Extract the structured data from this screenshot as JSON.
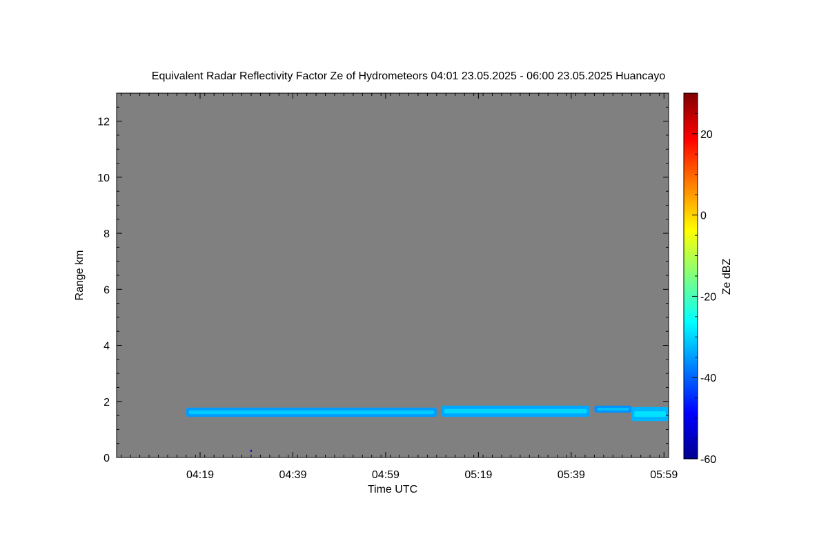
{
  "chart_data": {
    "type": "heatmap",
    "title": "Equivalent Radar Reflectivity Factor Ze of Hydrometeors   04:01 23.05.2025 - 06:00 23.05.2025 Huancayo",
    "xlabel": "Time UTC",
    "ylabel": "Range km",
    "x_range_min": [
      241,
      360
    ],
    "ylim": [
      0,
      13
    ],
    "x_ticks": [
      {
        "label": "04:19",
        "minute": 259
      },
      {
        "label": "04:39",
        "minute": 279
      },
      {
        "label": "04:59",
        "minute": 299
      },
      {
        "label": "05:19",
        "minute": 319
      },
      {
        "label": "05:39",
        "minute": 339
      },
      {
        "label": "05:59",
        "minute": 359
      }
    ],
    "y_ticks": [
      0,
      2,
      4,
      6,
      8,
      10,
      12
    ],
    "background_color": "#808080",
    "colorbar": {
      "label": "Ze dBZ",
      "range": [
        -60,
        30
      ],
      "ticks": [
        -60,
        -40,
        -20,
        0,
        20
      ],
      "colormap": "jet"
    },
    "layers": [
      {
        "start": "04:16",
        "end": "05:10",
        "base_km": 1.45,
        "top_km": 1.78,
        "ze_dbz": -35
      },
      {
        "start": "05:11",
        "end": "05:43",
        "base_km": 1.45,
        "top_km": 1.85,
        "ze_dbz": -34
      },
      {
        "start": "05:44",
        "end": "05:52",
        "base_km": 1.6,
        "top_km": 1.85,
        "ze_dbz": -36
      },
      {
        "start": "05:52",
        "end": "06:00",
        "base_km": 1.3,
        "top_km": 1.8,
        "ze_dbz": -33
      }
    ],
    "isolated_points": [
      {
        "time": "04:30",
        "range_km": 0.25,
        "ze_dbz": -50
      }
    ]
  }
}
